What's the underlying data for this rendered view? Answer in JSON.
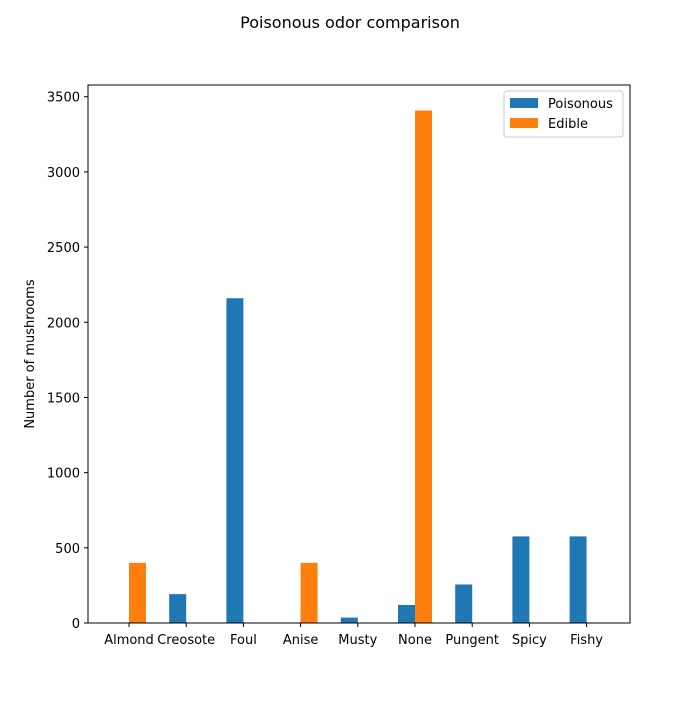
{
  "chart_data": {
    "type": "bar",
    "title": "Poisonous odor comparison",
    "xlabel": "",
    "ylabel": "Number of mushrooms",
    "categories": [
      "Almond",
      "Creosote",
      "Foul",
      "Anise",
      "Musty",
      "None",
      "Pungent",
      "Spicy",
      "Fishy"
    ],
    "series": [
      {
        "name": "Poisonous",
        "color": "#1f77b4",
        "values": [
          0,
          192,
          2160,
          0,
          36,
          120,
          256,
          576,
          576
        ]
      },
      {
        "name": "Edible",
        "color": "#ff7f0e",
        "values": [
          400,
          0,
          0,
          400,
          0,
          3408,
          0,
          0,
          0
        ]
      }
    ],
    "ylim": [
      0,
      3578
    ],
    "yticks": [
      0,
      500,
      1000,
      1500,
      2000,
      2500,
      3000,
      3500
    ],
    "grid": false,
    "legend_position": "top-right"
  }
}
